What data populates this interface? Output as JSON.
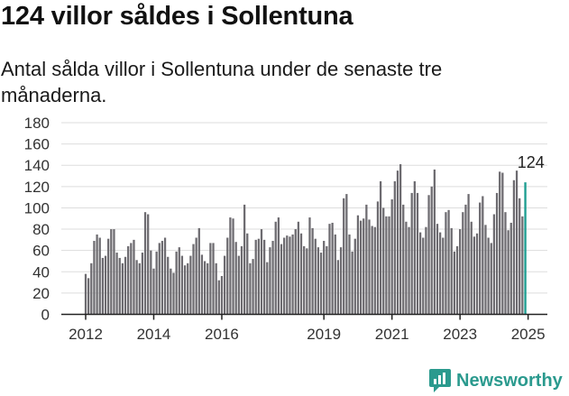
{
  "title": "124 villor såldes i Sollentuna",
  "subtitle": "Antal sålda villor i Sollentuna under de senaste tre månaderna.",
  "brand": "Newsworthy",
  "colors": {
    "bar": "#6d6b70",
    "highlight": "#1f9e92",
    "brand": "#2b9a8e",
    "grid": "#dddddd"
  },
  "chart_data": {
    "type": "bar",
    "title": "124 villor såldes i Sollentuna",
    "subtitle": "Antal sålda villor i Sollentuna under de senaste tre månaderna.",
    "xlabel": "",
    "ylabel": "",
    "ylim": [
      0,
      180
    ],
    "yticks": [
      0,
      20,
      40,
      60,
      80,
      100,
      120,
      140,
      160,
      180
    ],
    "xticks": [
      {
        "label": "2012",
        "index": 0
      },
      {
        "label": "2014",
        "index": 24
      },
      {
        "label": "2016",
        "index": 48
      },
      {
        "label": "2019",
        "index": 84
      },
      {
        "label": "2021",
        "index": 108
      },
      {
        "label": "2023",
        "index": 132
      },
      {
        "label": "2025",
        "index": 156
      }
    ],
    "start": "2012-01",
    "frequency": "monthly, rolling three-month total",
    "annotation": {
      "label": "124",
      "index": 157
    },
    "grid": true,
    "values": [
      38,
      34,
      48,
      69,
      75,
      72,
      53,
      55,
      71,
      80,
      80,
      58,
      53,
      48,
      54,
      64,
      67,
      70,
      51,
      48,
      58,
      96,
      94,
      60,
      43,
      59,
      67,
      69,
      72,
      54,
      43,
      39,
      59,
      63,
      55,
      46,
      48,
      55,
      66,
      72,
      81,
      56,
      50,
      48,
      67,
      67,
      48,
      32,
      36,
      55,
      72,
      91,
      90,
      68,
      55,
      64,
      103,
      76,
      48,
      52,
      70,
      71,
      80,
      70,
      49,
      63,
      69,
      87,
      91,
      66,
      72,
      74,
      73,
      75,
      80,
      87,
      76,
      64,
      62,
      91,
      81,
      71,
      63,
      58,
      69,
      64,
      85,
      86,
      75,
      51,
      63,
      109,
      113,
      75,
      59,
      71,
      93,
      88,
      90,
      103,
      89,
      83,
      82,
      106,
      125,
      100,
      92,
      92,
      108,
      125,
      135,
      141,
      103,
      87,
      82,
      114,
      125,
      114,
      77,
      72,
      82,
      112,
      120,
      136,
      85,
      77,
      72,
      96,
      98,
      81,
      59,
      64,
      80,
      96,
      103,
      113,
      87,
      73,
      76,
      105,
      111,
      84,
      72,
      67,
      94,
      114,
      134,
      133,
      96,
      79,
      86,
      126,
      135,
      109,
      92,
      124
    ]
  }
}
